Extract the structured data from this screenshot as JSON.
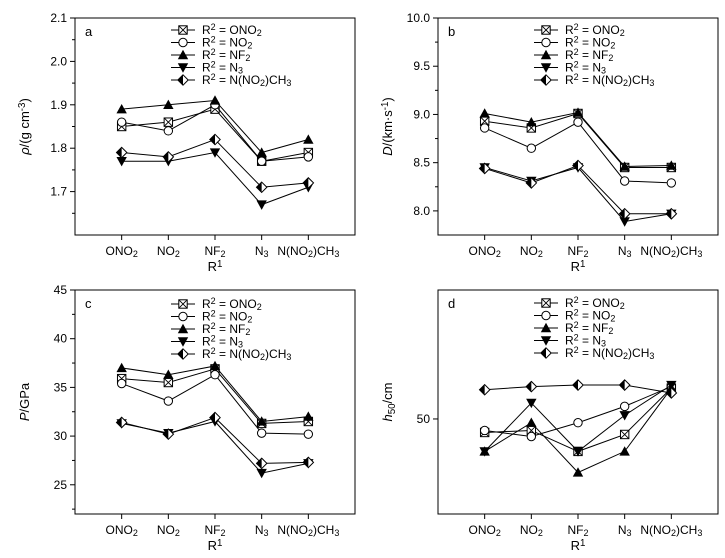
{
  "chart_data": [
    {
      "type": "line",
      "panel_label": "a",
      "categories": [
        "ONO2",
        "NO2",
        "NF2",
        "N3",
        "N(NO2)CH3"
      ],
      "xlabel": "R1",
      "ylabel": "ρ/(g cm-3)",
      "ylim": [
        1.6,
        2.1
      ],
      "yticks": [
        1.7,
        1.8,
        1.9,
        2.0,
        2.1
      ],
      "grid": false,
      "legend_position": "top-right",
      "series": [
        {
          "name": "R2 = ONO2",
          "marker": "boxcross",
          "values": [
            1.85,
            1.86,
            1.89,
            1.77,
            1.79
          ]
        },
        {
          "name": "R2 = NO2",
          "marker": "circle",
          "values": [
            1.86,
            1.84,
            1.9,
            1.77,
            1.78
          ]
        },
        {
          "name": "R2 = NF2",
          "marker": "triangle-up",
          "values": [
            1.89,
            1.9,
            1.91,
            1.79,
            1.82
          ]
        },
        {
          "name": "R2 = N3",
          "marker": "triangle-down",
          "values": [
            1.77,
            1.77,
            1.79,
            1.67,
            1.71
          ]
        },
        {
          "name": "R2 = N(NO2)CH3",
          "marker": "diamond",
          "values": [
            1.79,
            1.78,
            1.82,
            1.71,
            1.72
          ]
        }
      ]
    },
    {
      "type": "line",
      "panel_label": "b",
      "categories": [
        "ONO2",
        "NO2",
        "NF2",
        "N3",
        "N(NO2)CH3"
      ],
      "xlabel": "R1",
      "ylabel": "D/(km·s-1)",
      "ylim": [
        7.75,
        10.0
      ],
      "yticks": [
        8.0,
        8.5,
        9.0,
        9.5,
        10.0
      ],
      "grid": false,
      "legend_position": "top-right",
      "series": [
        {
          "name": "R2 = ONO2",
          "marker": "boxcross",
          "values": [
            8.93,
            8.86,
            9.01,
            8.45,
            8.45
          ]
        },
        {
          "name": "R2 = NO2",
          "marker": "circle",
          "values": [
            8.86,
            8.65,
            8.92,
            8.31,
            8.29
          ]
        },
        {
          "name": "R2 = NF2",
          "marker": "triangle-up",
          "values": [
            9.01,
            8.92,
            9.02,
            8.46,
            8.47
          ]
        },
        {
          "name": "R2 = N3",
          "marker": "triangle-down",
          "values": [
            8.45,
            8.31,
            8.45,
            7.89,
            7.97
          ]
        },
        {
          "name": "R2 = N(NO2)CH3",
          "marker": "diamond",
          "values": [
            8.44,
            8.29,
            8.47,
            7.97,
            7.97
          ]
        }
      ]
    },
    {
      "type": "line",
      "panel_label": "c",
      "categories": [
        "ONO2",
        "NO2",
        "NF2",
        "N3",
        "N(NO2)CH3"
      ],
      "xlabel": "R1",
      "ylabel": "P/GPa",
      "ylim": [
        22,
        45
      ],
      "yticks": [
        25,
        30,
        35,
        40,
        45
      ],
      "grid": false,
      "legend_position": "top-right",
      "series": [
        {
          "name": "R2 = ONO2",
          "marker": "boxcross",
          "values": [
            35.9,
            35.5,
            36.9,
            31.3,
            31.5
          ]
        },
        {
          "name": "R2 = NO2",
          "marker": "circle",
          "values": [
            35.4,
            33.6,
            36.3,
            30.3,
            30.2
          ]
        },
        {
          "name": "R2 = NF2",
          "marker": "triangle-up",
          "values": [
            37.0,
            36.3,
            37.2,
            31.5,
            32.0
          ]
        },
        {
          "name": "R2 = N3",
          "marker": "triangle-down",
          "values": [
            31.3,
            30.3,
            31.5,
            26.2,
            27.2
          ]
        },
        {
          "name": "R2 = N(NO2)CH3",
          "marker": "diamond",
          "values": [
            31.4,
            30.2,
            31.9,
            27.2,
            27.3
          ]
        }
      ]
    },
    {
      "type": "line",
      "panel_label": "d",
      "categories": [
        "ONO2",
        "NO2",
        "NF2",
        "N3",
        "N(NO2)CH3"
      ],
      "xlabel": "R1",
      "ylabel": "h50/cm",
      "yscale": "log",
      "ylim": [
        30,
        100
      ],
      "yticks": [
        50
      ],
      "grid": false,
      "legend_position": "top-right",
      "series": [
        {
          "name": "R2 = ONO2",
          "marker": "boxcross",
          "values": [
            46.5,
            47.0,
            42.0,
            46.0,
            59.0
          ]
        },
        {
          "name": "R2 = NO2",
          "marker": "circle",
          "values": [
            47.0,
            45.5,
            49.0,
            53.5,
            59.5
          ]
        },
        {
          "name": "R2 = NF2",
          "marker": "triangle-up",
          "values": [
            42.0,
            49.0,
            37.5,
            42.0,
            59.0
          ]
        },
        {
          "name": "R2 = N3",
          "marker": "triangle-down",
          "values": [
            42.0,
            54.5,
            42.0,
            51.0,
            60.0
          ]
        },
        {
          "name": "R2 = N(NO2)CH3",
          "marker": "diamond",
          "values": [
            58.5,
            59.5,
            60.0,
            60.0,
            57.5
          ]
        }
      ]
    }
  ]
}
